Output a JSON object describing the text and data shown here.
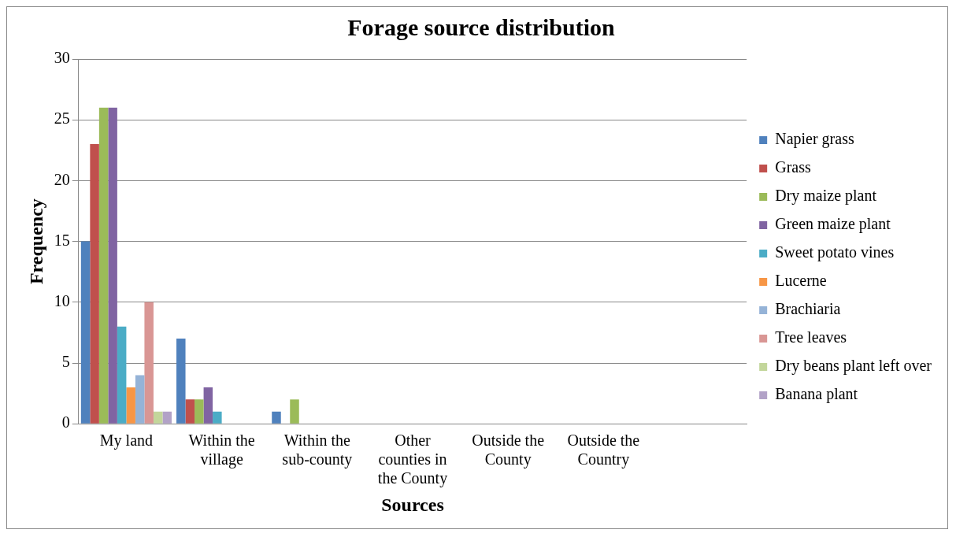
{
  "chart_data": {
    "type": "bar",
    "title": "Forage source distribution",
    "xlabel": "Sources",
    "ylabel": "Frequency",
    "categories": [
      "My land",
      "Within the village",
      "Within the sub-county",
      "Other counties in the County",
      "Outside the County",
      "Outside the Country",
      null
    ],
    "series": [
      {
        "name": "Napier grass",
        "color": "#4f81bd",
        "values": [
          15,
          7,
          1,
          0,
          0,
          0,
          0
        ]
      },
      {
        "name": "Grass",
        "color": "#c0504d",
        "values": [
          23,
          2,
          0,
          0,
          0,
          0,
          0
        ]
      },
      {
        "name": "Dry maize plant",
        "color": "#9bbb59",
        "values": [
          26,
          2,
          2,
          0,
          0,
          0,
          0
        ]
      },
      {
        "name": "Green maize plant",
        "color": "#8064a2",
        "values": [
          26,
          3,
          0,
          0,
          0,
          0,
          0
        ]
      },
      {
        "name": "Sweet potato vines",
        "color": "#4bacc6",
        "values": [
          8,
          1,
          0,
          0,
          0,
          0,
          0
        ]
      },
      {
        "name": "Lucerne",
        "color": "#f79646",
        "values": [
          3,
          0,
          0,
          0,
          0,
          0,
          0
        ]
      },
      {
        "name": "Brachiaria",
        "color": "#95b3d7",
        "values": [
          4,
          0,
          0,
          0,
          0,
          0,
          0
        ]
      },
      {
        "name": "Tree leaves",
        "color": "#d99694",
        "values": [
          10,
          0,
          0,
          0,
          0,
          0,
          0
        ]
      },
      {
        "name": "Dry beans plant left over",
        "color": "#c3d69b",
        "values": [
          1,
          0,
          0,
          0,
          0,
          0,
          0
        ]
      },
      {
        "name": "Banana plant",
        "color": "#b2a2c7",
        "values": [
          1,
          0,
          0,
          0,
          0,
          0,
          0
        ]
      }
    ],
    "ylim": [
      0,
      30
    ],
    "yticks": [
      0,
      5,
      10,
      15,
      20,
      25,
      30
    ],
    "grid": "y",
    "legend": "right"
  }
}
